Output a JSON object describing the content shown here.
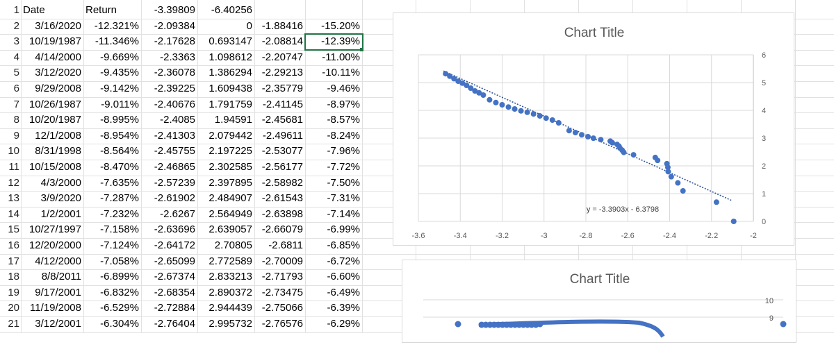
{
  "spreadsheet": {
    "row_numbers": [
      "1",
      "2",
      "3",
      "4",
      "5",
      "6",
      "7",
      "8",
      "9",
      "10",
      "11",
      "12",
      "13",
      "14",
      "15",
      "16",
      "17",
      "18",
      "19",
      "20",
      "21"
    ],
    "header_row": {
      "a": "Date",
      "b": "Return",
      "c": "-3.39809",
      "d": "-6.40256"
    },
    "rows": [
      {
        "a": "3/16/2020",
        "b": "-12.321%",
        "c": "-2.09384",
        "d": "0",
        "e": "-1.88416",
        "f": "-15.20%"
      },
      {
        "a": "10/19/1987",
        "b": "-11.346%",
        "c": "-2.17628",
        "d": "0.693147",
        "e": "-2.08814",
        "f": "-12.39%"
      },
      {
        "a": "4/14/2000",
        "b": "-9.669%",
        "c": "-2.3363",
        "d": "1.098612",
        "e": "-2.20747",
        "f": "-11.00%"
      },
      {
        "a": "3/12/2020",
        "b": "-9.435%",
        "c": "-2.36078",
        "d": "1.386294",
        "e": "-2.29213",
        "f": "-10.11%"
      },
      {
        "a": "9/29/2008",
        "b": "-9.142%",
        "c": "-2.39225",
        "d": "1.609438",
        "e": "-2.35779",
        "f": "-9.46%"
      },
      {
        "a": "10/26/1987",
        "b": "-9.011%",
        "c": "-2.40676",
        "d": "1.791759",
        "e": "-2.41145",
        "f": "-8.97%"
      },
      {
        "a": "10/20/1987",
        "b": "-8.995%",
        "c": "-2.4085",
        "d": "1.94591",
        "e": "-2.45681",
        "f": "-8.57%"
      },
      {
        "a": "12/1/2008",
        "b": "-8.954%",
        "c": "-2.41303",
        "d": "2.079442",
        "e": "-2.49611",
        "f": "-8.24%"
      },
      {
        "a": "8/31/1998",
        "b": "-8.564%",
        "c": "-2.45755",
        "d": "2.197225",
        "e": "-2.53077",
        "f": "-7.96%"
      },
      {
        "a": "10/15/2008",
        "b": "-8.470%",
        "c": "-2.46865",
        "d": "2.302585",
        "e": "-2.56177",
        "f": "-7.72%"
      },
      {
        "a": "4/3/2000",
        "b": "-7.635%",
        "c": "-2.57239",
        "d": "2.397895",
        "e": "-2.58982",
        "f": "-7.50%"
      },
      {
        "a": "3/9/2020",
        "b": "-7.287%",
        "c": "-2.61902",
        "d": "2.484907",
        "e": "-2.61543",
        "f": "-7.31%"
      },
      {
        "a": "1/2/2001",
        "b": "-7.232%",
        "c": "-2.6267",
        "d": "2.564949",
        "e": "-2.63898",
        "f": "-7.14%"
      },
      {
        "a": "10/27/1997",
        "b": "-7.158%",
        "c": "-2.63696",
        "d": "2.639057",
        "e": "-2.66079",
        "f": "-6.99%"
      },
      {
        "a": "12/20/2000",
        "b": "-7.124%",
        "c": "-2.64172",
        "d": "2.70805",
        "e": "-2.6811",
        "f": "-6.85%"
      },
      {
        "a": "4/12/2000",
        "b": "-7.058%",
        "c": "-2.65099",
        "d": "2.772589",
        "e": "-2.70009",
        "f": "-6.72%"
      },
      {
        "a": "8/8/2011",
        "b": "-6.899%",
        "c": "-2.67374",
        "d": "2.833213",
        "e": "-2.71793",
        "f": "-6.60%"
      },
      {
        "a": "9/17/2001",
        "b": "-6.832%",
        "c": "-2.68354",
        "d": "2.890372",
        "e": "-2.73475",
        "f": "-6.49%"
      },
      {
        "a": "11/19/2008",
        "b": "-6.529%",
        "c": "-2.72884",
        "d": "2.944439",
        "e": "-2.75066",
        "f": "-6.39%"
      },
      {
        "a": "3/12/2001",
        "b": "-6.304%",
        "c": "-2.76404",
        "d": "2.995732",
        "e": "-2.76576",
        "f": "-6.29%"
      }
    ]
  },
  "chart_data": [
    {
      "type": "scatter",
      "title": "Chart Title",
      "xlim": [
        -3.6,
        -2
      ],
      "ylim": [
        0,
        6
      ],
      "x_ticks": [
        "-3.6",
        "-3.4",
        "-3.2",
        "-3",
        "-2.8",
        "-2.6",
        "-2.4",
        "-2.2",
        "-2"
      ],
      "y_ticks": [
        "0",
        "1",
        "2",
        "3",
        "4",
        "5",
        "6"
      ],
      "x_tick_values": [
        -3.6,
        -3.4,
        -3.2,
        -3.0,
        -2.8,
        -2.6,
        -2.4,
        -2.2,
        -2.0
      ],
      "y_tick_values": [
        0,
        1,
        2,
        3,
        4,
        5,
        6
      ],
      "grid": true,
      "trendline": {
        "slope": -3.3903,
        "intercept": -6.3798,
        "x_range": [
          -3.48,
          -2.1
        ],
        "label": "y = -3.3903x - 6.3798"
      },
      "series": [
        {
          "points": [
            [
              -2.09384,
              0
            ],
            [
              -2.17628,
              0.693147
            ],
            [
              -2.3363,
              1.098612
            ],
            [
              -2.36078,
              1.386294
            ],
            [
              -2.39225,
              1.609438
            ],
            [
              -2.40676,
              1.791759
            ],
            [
              -2.4085,
              1.94591
            ],
            [
              -2.41303,
              2.079442
            ],
            [
              -2.45755,
              2.197225
            ],
            [
              -2.46865,
              2.302585
            ],
            [
              -2.57239,
              2.397895
            ],
            [
              -2.61902,
              2.484907
            ],
            [
              -2.6267,
              2.564949
            ],
            [
              -2.63696,
              2.639057
            ],
            [
              -2.64172,
              2.70805
            ],
            [
              -2.65099,
              2.772589
            ],
            [
              -2.67374,
              2.833213
            ],
            [
              -2.68354,
              2.890372
            ],
            [
              -2.72884,
              2.944439
            ],
            [
              -2.76404,
              2.995732
            ],
            [
              -2.79,
              3.05
            ],
            [
              -2.82,
              3.12
            ],
            [
              -2.85,
              3.2
            ],
            [
              -2.88,
              3.27
            ],
            [
              -2.93,
              3.55
            ],
            [
              -2.96,
              3.65
            ],
            [
              -2.99,
              3.72
            ],
            [
              -3.02,
              3.8
            ],
            [
              -3.05,
              3.87
            ],
            [
              -3.08,
              3.93
            ],
            [
              -3.11,
              3.98
            ],
            [
              -3.14,
              4.05
            ],
            [
              -3.17,
              4.12
            ],
            [
              -3.2,
              4.2
            ],
            [
              -3.23,
              4.28
            ],
            [
              -3.26,
              4.38
            ],
            [
              -3.29,
              4.55
            ],
            [
              -3.31,
              4.63
            ],
            [
              -3.33,
              4.7
            ],
            [
              -3.35,
              4.8
            ],
            [
              -3.37,
              4.9
            ],
            [
              -3.39,
              4.98
            ],
            [
              -3.41,
              5.05
            ],
            [
              -3.43,
              5.14
            ],
            [
              -3.45,
              5.23
            ],
            [
              -3.47,
              5.32
            ]
          ],
          "color": "#4472c4"
        }
      ]
    },
    {
      "type": "scatter",
      "title": "Chart Title",
      "y_ticks_visible": [
        "9",
        "10"
      ],
      "series": [
        {
          "color": "#4472c4"
        }
      ]
    }
  ]
}
